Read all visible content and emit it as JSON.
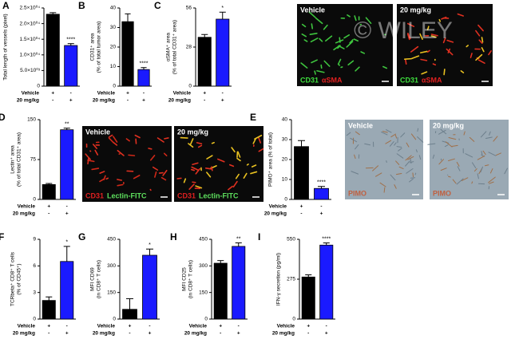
{
  "chart_data": [
    {
      "type": "bar",
      "panel": "A",
      "ylabel": [
        "Total length of vessels (pixel)"
      ],
      "categories": [
        "Vehicle",
        "20 mg/kg"
      ],
      "values": [
        23000,
        13000
      ],
      "errors": [
        500,
        600
      ],
      "colors": [
        "#000000",
        "#1a1aff"
      ],
      "annotation": "****",
      "ylim": [
        0,
        25000
      ],
      "yticks": [
        0,
        {
          "value": 5000,
          "label": "5.0×10⁰³"
        },
        {
          "value": 10000,
          "label": "1.0×10⁰⁴"
        },
        {
          "value": 15000,
          "label": "1.5×10⁰⁴"
        },
        {
          "value": 20000,
          "label": "2.0×10⁰⁴"
        },
        {
          "value": 25000,
          "label": "2.5×10⁰⁴"
        }
      ],
      "treatment_rows": [
        {
          "label": "Vehicle",
          "marks": [
            "+",
            "-"
          ]
        },
        {
          "label": "20 mg/kg",
          "marks": [
            "-",
            "+"
          ]
        }
      ]
    },
    {
      "type": "bar",
      "panel": "B",
      "ylabel": [
        "CD31⁺ area",
        "(% of total tumor area)"
      ],
      "categories": [
        "Vehicle",
        "20 mg/kg"
      ],
      "values": [
        33,
        8.5
      ],
      "errors": [
        4,
        1
      ],
      "colors": [
        "#000000",
        "#1a1aff"
      ],
      "annotation": "****",
      "ylim": [
        0,
        40
      ],
      "yticks": [
        0,
        10,
        20,
        30,
        40
      ],
      "treatment_rows": [
        {
          "label": "Vehicle",
          "marks": [
            "+",
            "-"
          ]
        },
        {
          "label": "20 mg/kg",
          "marks": [
            "-",
            "+"
          ]
        }
      ]
    },
    {
      "type": "bar",
      "panel": "C",
      "ylabel": [
        "αSMA⁺ area",
        "(% of total CD31⁺ area)"
      ],
      "categories": [
        "Vehicle",
        "20 mg/kg"
      ],
      "values": [
        35,
        48
      ],
      "errors": [
        2,
        5
      ],
      "colors": [
        "#000000",
        "#1a1aff"
      ],
      "annotation": "*",
      "ylim": [
        0,
        56
      ],
      "yticks": [
        0,
        28,
        56
      ],
      "treatment_rows": [
        {
          "label": "Vehicle",
          "marks": [
            "+",
            "-"
          ]
        },
        {
          "label": "20 mg/kg",
          "marks": [
            "-",
            "+"
          ]
        }
      ]
    },
    {
      "type": "bar",
      "panel": "D",
      "ylabel": [
        "Lectin⁺ area",
        "(% of total CD31⁺ area)"
      ],
      "categories": [
        "Vehicle",
        "20 mg/kg"
      ],
      "values": [
        28,
        131
      ],
      "errors": [
        2,
        3
      ],
      "colors": [
        "#000000",
        "#1a1aff"
      ],
      "annotation": "**",
      "ylim": [
        0,
        150
      ],
      "yticks": [
        0,
        75,
        150
      ],
      "treatment_rows": [
        {
          "label": "Vehicle",
          "marks": [
            "+",
            "-"
          ]
        },
        {
          "label": "20 mg/kg",
          "marks": [
            "-",
            "+"
          ]
        }
      ]
    },
    {
      "type": "bar",
      "panel": "E",
      "ylabel": [
        "PIMO⁺ area (% of total)"
      ],
      "categories": [
        "Vehicle",
        "20 mg/kg"
      ],
      "values": [
        26.5,
        5.5
      ],
      "errors": [
        3,
        1
      ],
      "colors": [
        "#000000",
        "#1a1aff"
      ],
      "annotation": "****",
      "ylim": [
        0,
        40
      ],
      "yticks": [
        0,
        10,
        20,
        30,
        40
      ],
      "treatment_rows": [
        {
          "label": "Vehicle",
          "marks": [
            "+",
            "-"
          ]
        },
        {
          "label": "20 mg/kg",
          "marks": [
            "-",
            "+"
          ]
        }
      ]
    },
    {
      "type": "bar",
      "panel": "F",
      "ylabel": [
        "TCRbeta⁺ CD8⁺ T cells",
        "(% of CD45⁺)"
      ],
      "categories": [
        "Vehicle",
        "20 mg/kg"
      ],
      "values": [
        2.1,
        6.5
      ],
      "errors": [
        0.4,
        1.7
      ],
      "colors": [
        "#000000",
        "#1a1aff"
      ],
      "annotation": "*",
      "ylim": [
        0,
        9
      ],
      "yticks": [
        0,
        3,
        6,
        9
      ],
      "treatment_rows": [
        {
          "label": "Vehicle",
          "marks": [
            "+",
            "-"
          ]
        },
        {
          "label": "20 mg/kg",
          "marks": [
            "-",
            "+"
          ]
        }
      ]
    },
    {
      "type": "bar",
      "panel": "G",
      "ylabel": [
        "MFI CD69",
        "(in CD8⁺ T cells)"
      ],
      "categories": [
        "Vehicle",
        "20 mg/kg"
      ],
      "values": [
        55,
        360
      ],
      "errors": [
        60,
        35
      ],
      "colors": [
        "#000000",
        "#1a1aff"
      ],
      "annotation": "*",
      "ylim": [
        0,
        450
      ],
      "yticks": [
        0,
        150,
        300,
        450
      ],
      "treatment_rows": [
        {
          "label": "Vehicle",
          "marks": [
            "+",
            "-"
          ]
        },
        {
          "label": "20 mg/kg",
          "marks": [
            "-",
            "+"
          ]
        }
      ]
    },
    {
      "type": "bar",
      "panel": "H",
      "ylabel": [
        "MFI CD25",
        "(in CD8⁺ T cells)"
      ],
      "categories": [
        "Vehicle",
        "20 mg/kg"
      ],
      "values": [
        315,
        410
      ],
      "errors": [
        15,
        20
      ],
      "colors": [
        "#000000",
        "#1a1aff"
      ],
      "annotation": "**",
      "ylim": [
        0,
        450
      ],
      "yticks": [
        0,
        150,
        300,
        450
      ],
      "treatment_rows": [
        {
          "label": "Vehicle",
          "marks": [
            "+",
            "-"
          ]
        },
        {
          "label": "20 mg/kg",
          "marks": [
            "-",
            "+"
          ]
        }
      ]
    },
    {
      "type": "bar",
      "panel": "I",
      "ylabel": [
        "IFN-γ secretion (pg/ml)"
      ],
      "categories": [
        "Vehicle",
        "20 mg/kg"
      ],
      "values": [
        290,
        510
      ],
      "errors": [
        15,
        15
      ],
      "colors": [
        "#000000",
        "#1a1aff"
      ],
      "annotation": "****",
      "ylim": [
        0,
        550
      ],
      "yticks": [
        0,
        275,
        550
      ],
      "treatment_rows": [
        {
          "label": "Vehicle",
          "marks": [
            "+",
            "-"
          ]
        },
        {
          "label": "20 mg/kg",
          "marks": [
            "-",
            "+"
          ]
        }
      ]
    }
  ],
  "images": [
    {
      "panel": "C",
      "label": "Vehicle",
      "stains": [
        "CD31",
        "αSMA"
      ]
    },
    {
      "panel": "C",
      "label": "20 mg/kg",
      "stains": [
        "CD31",
        "αSMA"
      ]
    },
    {
      "panel": "D",
      "label": "Vehicle",
      "stains": [
        "CD31",
        "Lectin-FITC"
      ]
    },
    {
      "panel": "D",
      "label": "20 mg/kg",
      "stains": [
        "CD31",
        "Lectin-FITC"
      ]
    },
    {
      "panel": "E",
      "label": "Vehicle",
      "stains": [
        "PIMO"
      ]
    },
    {
      "panel": "E",
      "label": "20 mg/kg",
      "stains": [
        "PIMO"
      ]
    }
  ],
  "watermark": "© WILEY"
}
